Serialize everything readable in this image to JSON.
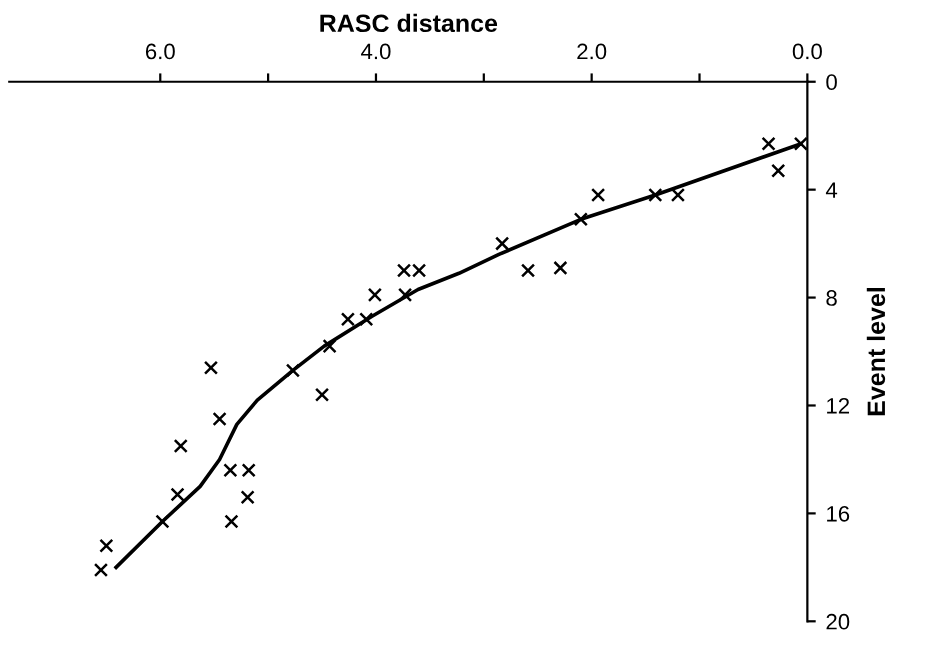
{
  "chart_data": {
    "type": "scatter",
    "xlabel": "RASC distance",
    "ylabel": "Event level",
    "xlim": [
      7.4,
      0
    ],
    "ylim": [
      20,
      0
    ],
    "xticks": [
      {
        "value": 6,
        "label": "6.0"
      },
      {
        "value": 5,
        "label": null
      },
      {
        "value": 4,
        "label": "4.0"
      },
      {
        "value": 3,
        "label": null
      },
      {
        "value": 2,
        "label": "2.0"
      },
      {
        "value": 1,
        "label": null
      },
      {
        "value": 0,
        "label": "0.0"
      }
    ],
    "yticks": [
      0,
      4,
      8,
      12,
      16,
      20
    ],
    "grid": false,
    "series": [
      {
        "color": "#000000",
        "marker": "cross",
        "x": [
          6.55,
          6.5,
          5.98,
          5.84,
          5.81,
          5.53,
          5.45,
          5.35,
          5.18,
          5.19,
          5.34,
          4.77,
          4.5,
          4.43,
          4.26,
          4.09,
          4.01,
          3.74,
          3.6,
          3.73,
          2.83,
          2.59,
          2.29,
          2.1,
          1.94,
          1.41,
          1.2,
          0.36,
          0.27,
          0.06
        ],
        "values": [
          18.1,
          17.2,
          16.3,
          15.3,
          13.5,
          10.6,
          12.5,
          14.4,
          14.4,
          15.4,
          16.3,
          10.7,
          11.6,
          9.8,
          8.8,
          8.8,
          7.9,
          7.0,
          7.0,
          7.9,
          6.0,
          7.0,
          6.9,
          5.1,
          4.2,
          4.2,
          4.2,
          2.3,
          3.3,
          2.3
        ]
      },
      {
        "type": "line",
        "color": "#000000",
        "marker": "none",
        "line_style": "solid",
        "x": [
          6.41,
          5.98,
          5.63,
          5.45,
          5.29,
          5.1,
          4.77,
          4.48,
          4.04,
          3.61,
          3.23,
          2.86,
          2.1,
          1.41,
          0.06
        ],
        "values": [
          18.0,
          16.3,
          15.0,
          14.0,
          12.7,
          11.8,
          10.7,
          9.8,
          8.7,
          7.7,
          7.1,
          6.4,
          5.1,
          4.2,
          2.3
        ]
      }
    ]
  }
}
